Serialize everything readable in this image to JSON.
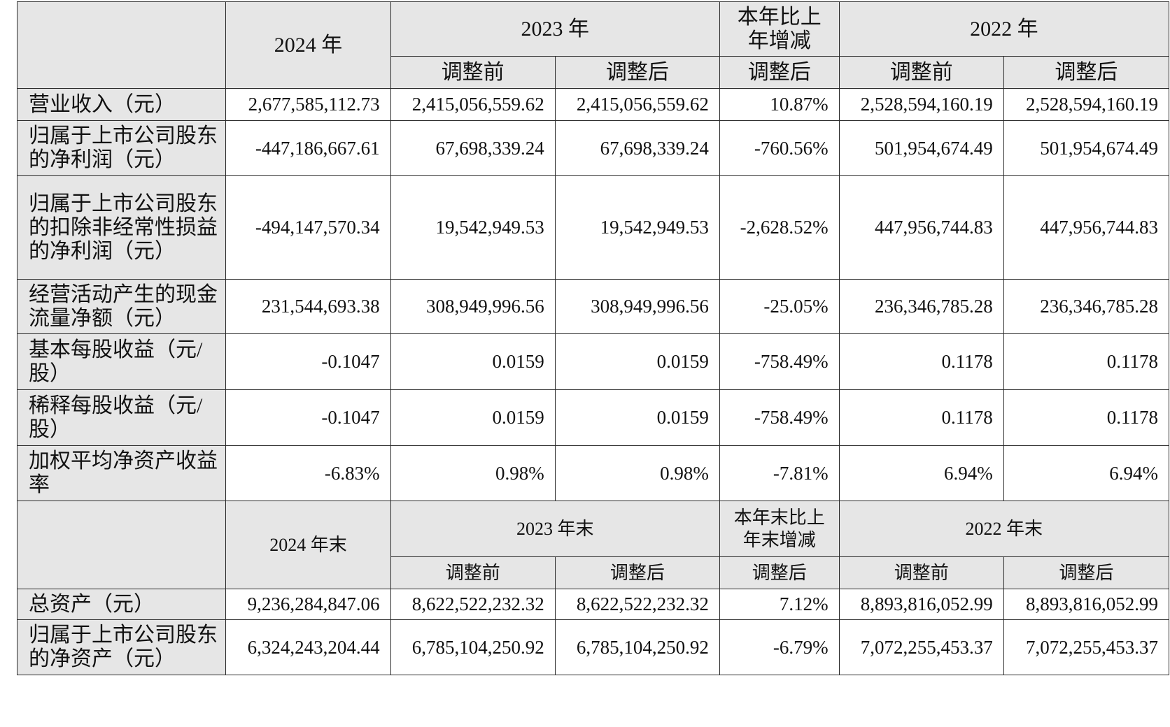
{
  "header1": {
    "y2024": "2024 年",
    "y2023": "2023 年",
    "change": "本年比上年增减",
    "y2022": "2022 年",
    "sub": [
      "调整前",
      "调整后",
      "调整后",
      "调整前",
      "调整后"
    ]
  },
  "income_rows": [
    {
      "label": "营业收入（元）",
      "values": [
        "2,677,585,112.73",
        "2,415,056,559.62",
        "2,415,056,559.62",
        "10.87%",
        "2,528,594,160.19",
        "2,528,594,160.19"
      ]
    },
    {
      "label": "归属于上市公司股东的净利润（元）",
      "values": [
        "-447,186,667.61",
        "67,698,339.24",
        "67,698,339.24",
        "-760.56%",
        "501,954,674.49",
        "501,954,674.49"
      ]
    },
    {
      "label": "归属于上市公司股东的扣除非经常性损益的净利润（元）",
      "values": [
        "-494,147,570.34",
        "19,542,949.53",
        "19,542,949.53",
        "-2,628.52%",
        "447,956,744.83",
        "447,956,744.83"
      ]
    },
    {
      "label": "经营活动产生的现金流量净额（元）",
      "values": [
        "231,544,693.38",
        "308,949,996.56",
        "308,949,996.56",
        "-25.05%",
        "236,346,785.28",
        "236,346,785.28"
      ]
    },
    {
      "label": "基本每股收益（元/股）",
      "values": [
        "-0.1047",
        "0.0159",
        "0.0159",
        "-758.49%",
        "0.1178",
        "0.1178"
      ]
    },
    {
      "label": "稀释每股收益（元/股）",
      "values": [
        "-0.1047",
        "0.0159",
        "0.0159",
        "-758.49%",
        "0.1178",
        "0.1178"
      ]
    },
    {
      "label": "加权平均净资产收益率",
      "values": [
        "-6.83%",
        "0.98%",
        "0.98%",
        "-7.81%",
        "6.94%",
        "6.94%"
      ]
    }
  ],
  "header2": {
    "y2024": "2024 年末",
    "y2023": "2023 年末",
    "change": "本年末比上年末增减",
    "y2022": "2022 年末",
    "sub": [
      "调整前",
      "调整后",
      "调整后",
      "调整前",
      "调整后"
    ]
  },
  "asset_rows": [
    {
      "label": "总资产（元）",
      "values": [
        "9,236,284,847.06",
        "8,622,522,232.32",
        "8,622,522,232.32",
        "7.12%",
        "8,893,816,052.99",
        "8,893,816,052.99"
      ]
    },
    {
      "label": "归属于上市公司股东的净资产（元）",
      "values": [
        "6,324,243,204.44",
        "6,785,104,250.92",
        "6,785,104,250.92",
        "-6.79%",
        "7,072,255,453.37",
        "7,072,255,453.37"
      ]
    }
  ]
}
